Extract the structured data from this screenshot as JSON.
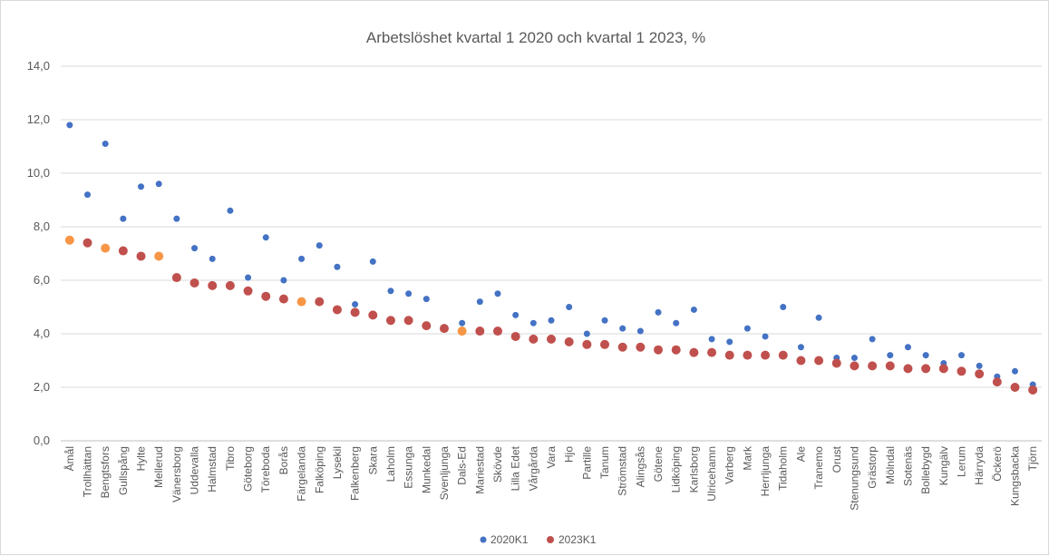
{
  "chart_data": {
    "type": "scatter",
    "title": "Arbetslöshet kvartal 1 2020 och kvartal 1 2023, %",
    "xlabel": "",
    "ylabel": "",
    "ylim": [
      0,
      14
    ],
    "y_ticks": [
      "0,0",
      "2,0",
      "4,0",
      "6,0",
      "8,0",
      "10,0",
      "12,0",
      "14,0"
    ],
    "grid": true,
    "legend_position": "bottom",
    "categories": [
      "Åmål",
      "Trollhättan",
      "Bengtsfors",
      "Gullspång",
      "Hylte",
      "Mellerud",
      "Vänersborg",
      "Uddevalla",
      "Halmstad",
      "Tibro",
      "Göteborg",
      "Töreboda",
      "Borås",
      "Färgelanda",
      "Falköping",
      "Lysekil",
      "Falkenberg",
      "Skara",
      "Laholm",
      "Essunga",
      "Munkedal",
      "Svenljunga",
      "Dals-Ed",
      "Mariestad",
      "Skövde",
      "Lilla Edet",
      "Vårgårda",
      "Vara",
      "Hjo",
      "Partille",
      "Tanum",
      "Strömstad",
      "Alingsås",
      "Götene",
      "Lidköping",
      "Karlsborg",
      "Ulricehamn",
      "Varberg",
      "Mark",
      "Herrljunga",
      "Tidaholm",
      "Ale",
      "Tranemo",
      "Orust",
      "Stenungsund",
      "Grästorp",
      "Mölndal",
      "Sotenäs",
      "Bollebygd",
      "Kungälv",
      "Lerum",
      "Härryda",
      "Öckerö",
      "Kungsbacka",
      "Tjörn"
    ],
    "series": [
      {
        "name": "2020K1",
        "color": "#4472c4",
        "values": [
          11.8,
          9.2,
          11.1,
          8.3,
          9.5,
          9.6,
          8.3,
          7.2,
          6.8,
          8.6,
          6.1,
          7.6,
          6.0,
          6.8,
          7.3,
          6.5,
          5.1,
          6.7,
          5.6,
          5.5,
          5.3,
          4.2,
          4.4,
          5.2,
          5.5,
          4.7,
          4.4,
          4.5,
          5.0,
          4.0,
          4.5,
          4.2,
          4.1,
          4.8,
          4.4,
          4.9,
          3.8,
          3.7,
          4.2,
          3.9,
          5.0,
          3.5,
          4.6,
          3.1,
          3.1,
          3.8,
          3.2,
          3.5,
          3.2,
          2.9,
          3.2,
          2.8,
          2.4,
          2.6,
          2.1
        ]
      },
      {
        "name": "2023K1",
        "color": "#c0504d",
        "highlight_color": "#f79646",
        "highlight_categories": [
          "Åmål",
          "Bengtsfors",
          "Mellerud",
          "Färgelanda",
          "Dals-Ed"
        ],
        "values": [
          7.5,
          7.4,
          7.2,
          7.1,
          6.9,
          6.9,
          6.1,
          5.9,
          5.8,
          5.8,
          5.6,
          5.4,
          5.3,
          5.2,
          5.2,
          4.9,
          4.8,
          4.7,
          4.5,
          4.5,
          4.3,
          4.2,
          4.1,
          4.1,
          4.1,
          3.9,
          3.8,
          3.8,
          3.7,
          3.6,
          3.6,
          3.5,
          3.5,
          3.4,
          3.4,
          3.3,
          3.3,
          3.2,
          3.2,
          3.2,
          3.2,
          3.0,
          3.0,
          2.9,
          2.8,
          2.8,
          2.8,
          2.7,
          2.7,
          2.7,
          2.6,
          2.5,
          2.2,
          2.0,
          1.9
        ]
      }
    ]
  }
}
